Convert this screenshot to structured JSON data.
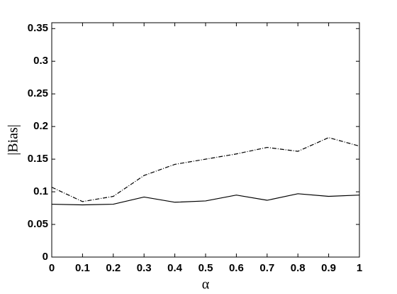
{
  "chart_data": {
    "type": "line",
    "x_label": "α",
    "y_label": "|Bias|",
    "x": [
      0,
      0.1,
      0.2,
      0.3,
      0.4,
      0.5,
      0.6,
      0.7,
      0.8,
      0.9,
      1
    ],
    "series": [
      {
        "color": "#000000",
        "dash": "solid",
        "values": [
          0.081,
          0.08,
          0.081,
          0.092,
          0.084,
          0.086,
          0.095,
          0.087,
          0.097,
          0.093,
          0.095
        ]
      },
      {
        "color": "#000000",
        "dash": "dashdot",
        "values": [
          0.107,
          0.085,
          0.093,
          0.125,
          0.142,
          0.15,
          0.158,
          0.168,
          0.162,
          0.183,
          0.17
        ]
      }
    ],
    "xlim": [
      0,
      1
    ],
    "xticks": [
      0,
      0.1,
      0.2,
      0.3,
      0.4,
      0.5,
      0.6,
      0.7,
      0.8,
      0.9,
      1
    ],
    "ylim": [
      0,
      0.359
    ],
    "yticks": [
      0,
      0.05,
      0.1,
      0.15,
      0.2,
      0.25,
      0.3,
      0.35
    ],
    "grid": false
  }
}
